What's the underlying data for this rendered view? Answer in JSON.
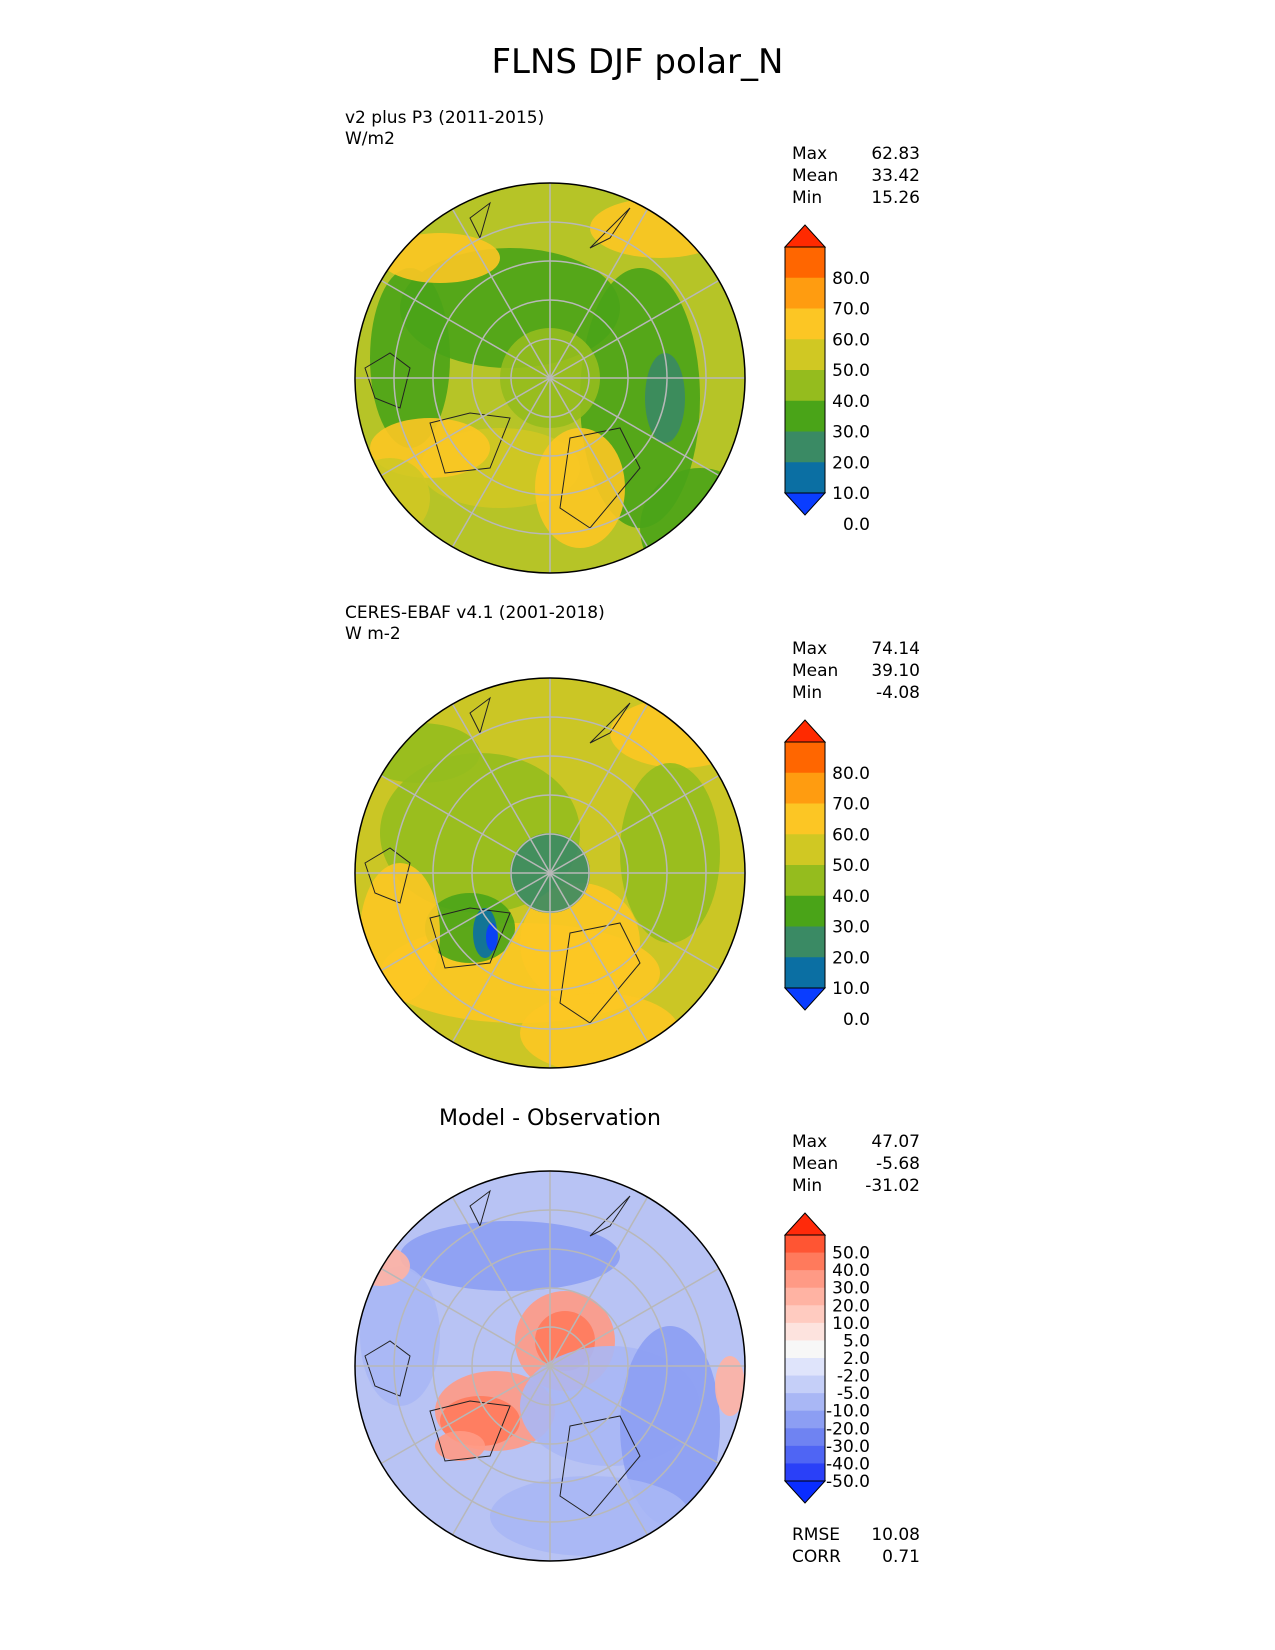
{
  "title": "FLNS DJF polar_N",
  "panels": [
    {
      "label": "v2 plus P3 (2011-2015)",
      "units": "W/m2",
      "stats": [
        {
          "name": "Max",
          "value": "62.83"
        },
        {
          "name": "Mean",
          "value": "33.42"
        },
        {
          "name": "Min",
          "value": "15.26"
        }
      ],
      "colorbar": {
        "ticks": [
          "80.0",
          "70.0",
          "60.0",
          "50.0",
          "40.0",
          "30.0",
          "20.0",
          "10.0",
          "0.0"
        ],
        "colors": [
          "#ff2a00",
          "#ff6600",
          "#ff9c10",
          "#fcc624",
          "#d0c823",
          "#95bc1e",
          "#4aa418",
          "#3a8a64",
          "#0b6fa3",
          "#0a3dff"
        ]
      },
      "base_color": "#b6c427"
    },
    {
      "label": "CERES-EBAF v4.1 (2001-2018)",
      "units": "W m-2",
      "stats": [
        {
          "name": "Max",
          "value": "74.14"
        },
        {
          "name": "Mean",
          "value": "39.10"
        },
        {
          "name": "Min",
          "value": "-4.08"
        }
      ],
      "colorbar": {
        "ticks": [
          "80.0",
          "70.0",
          "60.0",
          "50.0",
          "40.0",
          "30.0",
          "20.0",
          "10.0",
          "0.0"
        ],
        "colors": [
          "#ff2a00",
          "#ff6600",
          "#ff9c10",
          "#fcc624",
          "#d0c823",
          "#95bc1e",
          "#4aa418",
          "#3a8a64",
          "#0b6fa3",
          "#0a3dff"
        ]
      },
      "base_color": "#cbc625"
    },
    {
      "title": "Model - Observation",
      "stats": [
        {
          "name": "Max",
          "value": "47.07"
        },
        {
          "name": "Mean",
          "value": "-5.68"
        },
        {
          "name": "Min",
          "value": "-31.02"
        }
      ],
      "colorbar": {
        "ticks": [
          "50.0",
          "40.0",
          "30.0",
          "20.0",
          "10.0",
          "5.0",
          "2.0",
          "-2.0",
          "-5.0",
          "-10.0",
          "-20.0",
          "-30.0",
          "-40.0",
          "-50.0"
        ],
        "colors": [
          "#ff2a0a",
          "#ff5533",
          "#ff7a5c",
          "#ff9a85",
          "#ffb3a3",
          "#ffcbc0",
          "#fde3de",
          "#f7f7f7",
          "#dfe4fb",
          "#c5cff8",
          "#a9b7f5",
          "#8c9ef3",
          "#6f83f2",
          "#4f65f4",
          "#2a40f8",
          "#0a2dff"
        ]
      },
      "base_color": "#b8c3f4",
      "extra_stats": [
        {
          "name": "RMSE",
          "value": "10.08"
        },
        {
          "name": "CORR",
          "value": "0.71"
        }
      ]
    }
  ]
}
